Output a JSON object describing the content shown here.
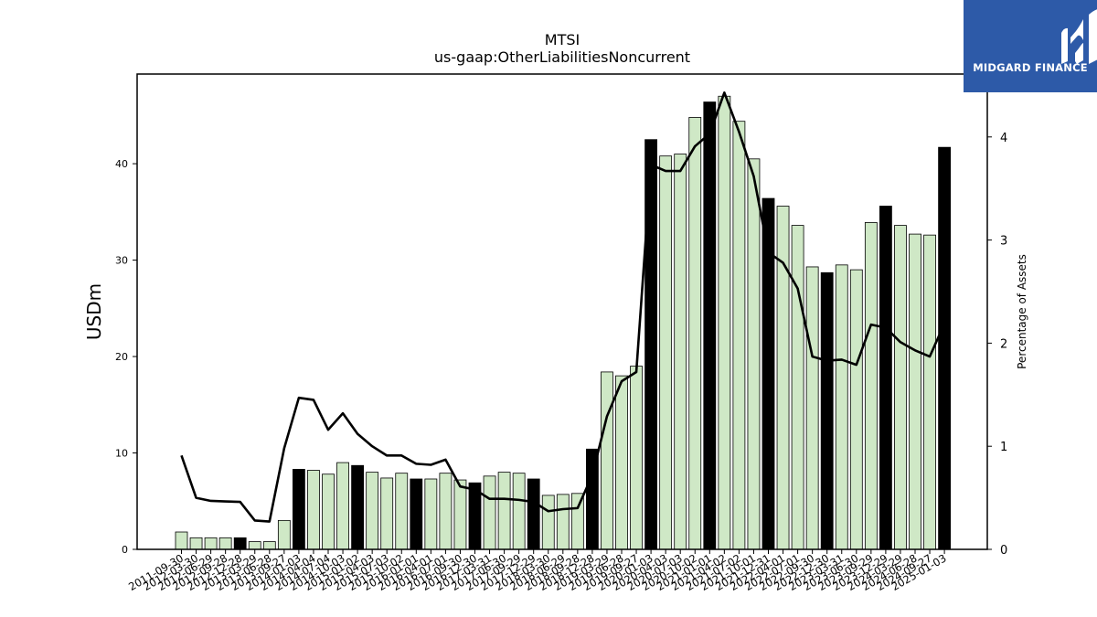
{
  "logo": {
    "text": "MIDGARD FINANCE",
    "background": "#2d5aa8"
  },
  "colors": {
    "bar_light": "#cfe8c6",
    "bar_dark": "#000000",
    "line": "#000000"
  },
  "chart_data": {
    "type": "bar",
    "title": "MTSI",
    "subtitle": "us-gaap:OtherLiabilitiesNoncurrent",
    "ylabel": "USDm",
    "y2label": "Percentage of Assets",
    "ylim": [
      0,
      49.3
    ],
    "y2lim": [
      0,
      4.61
    ],
    "yticks": [
      0,
      10,
      20,
      30,
      40
    ],
    "y2ticks": [
      0,
      1,
      2,
      3,
      4
    ],
    "grid": false,
    "categories": [
      "2011-09-30",
      "2012-03-30",
      "2012-06-29",
      "2012-09-28",
      "2012-12-28",
      "2013-03-29",
      "2013-06-28",
      "2013-09-27",
      "2014-01-03",
      "2014-04-04",
      "2014-07-04",
      "2014-10-03",
      "2015-01-02",
      "2015-04-03",
      "2015-07-03",
      "2015-10-02",
      "2016-01-01",
      "2016-04-01",
      "2016-07-01",
      "2016-09-30",
      "2016-12-30",
      "2017-03-31",
      "2017-06-30",
      "2017-09-29",
      "2017-12-29",
      "2018-03-30",
      "2018-06-29",
      "2018-09-28",
      "2018-12-28",
      "2019-03-29",
      "2019-06-28",
      "2019-09-27",
      "2020-01-03",
      "2020-04-03",
      "2020-07-03",
      "2020-10-02",
      "2021-01-01",
      "2021-04-02",
      "2021-07-02",
      "2021-10-01",
      "2021-12-31",
      "2022-04-01",
      "2022-07-01",
      "2022-09-30",
      "2022-12-30",
      "2023-03-31",
      "2023-06-30",
      "2023-09-29",
      "2023-12-29",
      "2024-03-29",
      "2024-06-28",
      "2024-09-27",
      "2025-01-03"
    ],
    "series": [
      {
        "kind": "bar",
        "values": [
          1.8,
          1.2,
          1.2,
          1.2,
          1.2,
          0.8,
          0.8,
          3.0,
          8.3,
          8.2,
          7.8,
          9.0,
          8.7,
          8.0,
          7.4,
          7.9,
          7.3,
          7.3,
          7.9,
          7.2,
          6.9,
          7.6,
          8.0,
          7.9,
          7.3,
          5.6,
          5.7,
          5.8,
          10.4,
          18.4,
          18.0,
          19.0,
          42.5,
          40.8,
          41.0,
          44.8,
          46.4,
          47.0,
          44.4,
          40.5,
          36.4,
          35.6,
          33.6,
          29.3,
          28.7,
          29.5,
          29.0,
          33.9,
          35.6,
          33.6,
          32.7,
          32.6,
          41.7
        ],
        "highlight": [
          false,
          false,
          false,
          false,
          true,
          false,
          false,
          false,
          true,
          false,
          false,
          false,
          true,
          false,
          false,
          false,
          true,
          false,
          false,
          false,
          true,
          false,
          false,
          false,
          true,
          false,
          false,
          false,
          true,
          false,
          false,
          false,
          true,
          false,
          false,
          false,
          true,
          false,
          false,
          false,
          true,
          false,
          false,
          false,
          true,
          false,
          false,
          false,
          true,
          false,
          false,
          false,
          true
        ]
      },
      {
        "kind": "line",
        "axis": "right",
        "values": [
          0.91,
          0.5,
          0.47,
          0.465,
          0.46,
          0.28,
          0.27,
          0.98,
          1.47,
          1.45,
          1.16,
          1.32,
          1.12,
          1.0,
          0.91,
          0.91,
          0.83,
          0.82,
          0.87,
          0.61,
          0.58,
          0.49,
          0.49,
          0.48,
          0.46,
          0.37,
          0.39,
          0.4,
          0.72,
          1.29,
          1.63,
          1.72,
          3.73,
          3.67,
          3.67,
          3.91,
          4.03,
          4.43,
          4.05,
          3.62,
          2.88,
          2.78,
          2.53,
          1.87,
          1.83,
          1.84,
          1.79,
          2.18,
          2.15,
          2.01,
          1.93,
          1.87,
          2.19
        ]
      }
    ]
  }
}
